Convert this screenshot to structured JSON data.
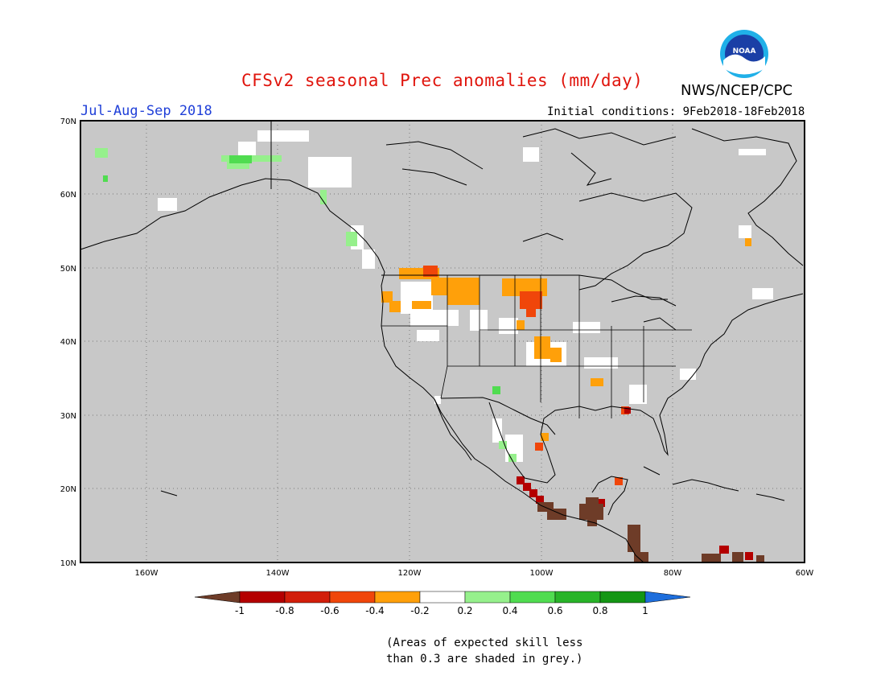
{
  "title": "CFSv2 seasonal Prec anomalies (mm/day)",
  "agency": "NWS/NCEP/CPC",
  "logo_text": "NOAA",
  "period": "Jul-Aug-Sep 2018",
  "initial_conditions": "Initial conditions: 9Feb2018-18Feb2018",
  "footnote_line1": "(Areas of expected skill less",
  "footnote_line2": "than 0.3 are shaded in grey.)",
  "map": {
    "lon_range": [
      -170,
      -60
    ],
    "lat_range": [
      10,
      70
    ],
    "lon_ticks": [
      "160W",
      "140W",
      "120W",
      "100W",
      "80W",
      "60W"
    ],
    "lat_ticks": [
      "70N",
      "60N",
      "50N",
      "40N",
      "30N",
      "20N",
      "10N"
    ],
    "grid": "dotted",
    "background": "grey (low skill)"
  },
  "colorbar": {
    "labels": [
      "-1",
      "-0.8",
      "-0.6",
      "-0.4",
      "-0.2",
      "0.2",
      "0.4",
      "0.6",
      "0.8",
      "1"
    ],
    "colors": [
      "#6e3c28",
      "#b40000",
      "#d21e0a",
      "#f0460a",
      "#ffa00a",
      "#ffffff",
      "#96f08c",
      "#50dc50",
      "#28b428",
      "#149614",
      "#1e6edc"
    ]
  },
  "colors": {
    "title": "#e0140c",
    "period": "#1f3fd8",
    "grey_background": "#c8c8c8"
  }
}
